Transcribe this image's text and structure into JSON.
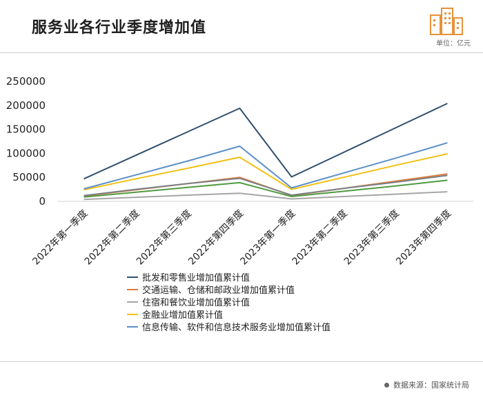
{
  "title": "服务业各行业季度增加值",
  "unit": "单位：亿元",
  "source": "数据来源：国家统计局",
  "chart_data": {
    "type": "line",
    "categories": [
      "2022年第一季度",
      "2022年第二季度",
      "2022年第三季度",
      "2022年第四季度",
      "2023年第一季度",
      "2023年第二季度",
      "2023年第三季度",
      "2023年第四季度"
    ],
    "ylim": [
      0,
      250000
    ],
    "yticks": [
      0,
      50000,
      100000,
      150000,
      200000,
      250000
    ],
    "legend_position": "bottom",
    "series": [
      {
        "name": "批发和零售业增加值累计值",
        "color": "#2f4f6e",
        "values": [
          47000,
          96000,
          145000,
          194000,
          51000,
          102000,
          153000,
          204000
        ]
      },
      {
        "name": "交通运输、仓储和邮政业增加值累计值",
        "color": "#e07b39",
        "values": [
          11000,
          24000,
          37000,
          50000,
          12000,
          27000,
          42000,
          57000
        ]
      },
      {
        "name": "住宿和餐饮业增加值累计值",
        "color": "#a5a5a5",
        "values": [
          4000,
          8500,
          13000,
          17000,
          5000,
          10000,
          15000,
          20000
        ]
      },
      {
        "name": "金融业增加值累计值",
        "color": "#f2c012",
        "values": [
          24000,
          47000,
          69000,
          92000,
          25000,
          50000,
          75000,
          99000
        ]
      },
      {
        "name": "信息传输、软件和信息技术服务业增加值累计值",
        "color": "#5b8fc7",
        "values": [
          26000,
          55000,
          84000,
          115000,
          28000,
          59000,
          90000,
          122000
        ]
      },
      {
        "name": "",
        "color": "#4e9a3e",
        "values": [
          9000,
          19000,
          29000,
          39000,
          10000,
          21000,
          32000,
          44000
        ]
      },
      {
        "name": "",
        "color": "#7a7f86",
        "values": [
          12000,
          25000,
          37000,
          48000,
          13000,
          27000,
          40000,
          54000
        ]
      }
    ]
  }
}
